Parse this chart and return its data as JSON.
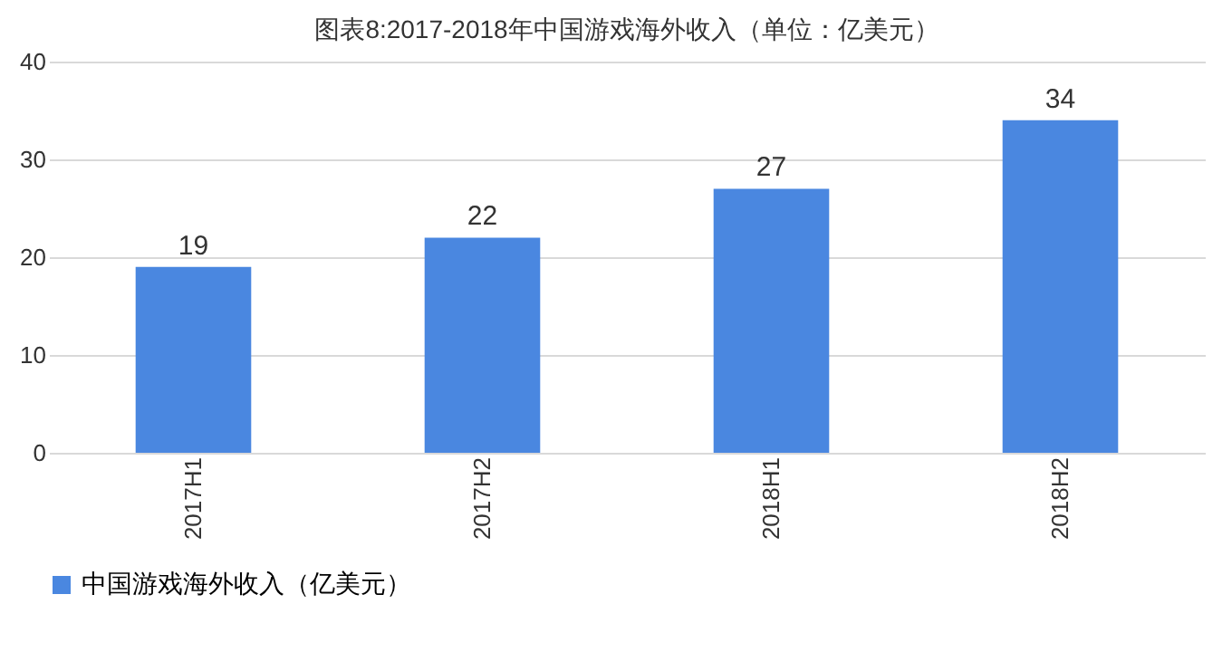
{
  "chart_data": {
    "type": "bar",
    "title": "图表8:2017-2018年中国游戏海外收入（单位：亿美元）",
    "categories": [
      "2017H1",
      "2017H2",
      "2018H1",
      "2018H2"
    ],
    "series": [
      {
        "name": "中国游戏海外收入（亿美元）",
        "color": "#4a87e0",
        "values": [
          19,
          22,
          27,
          34
        ]
      }
    ],
    "ylim": [
      0,
      40
    ],
    "yticks": [
      0,
      10,
      20,
      30,
      40
    ],
    "grid": "y",
    "legend": "bottom",
    "data_labels": true
  }
}
